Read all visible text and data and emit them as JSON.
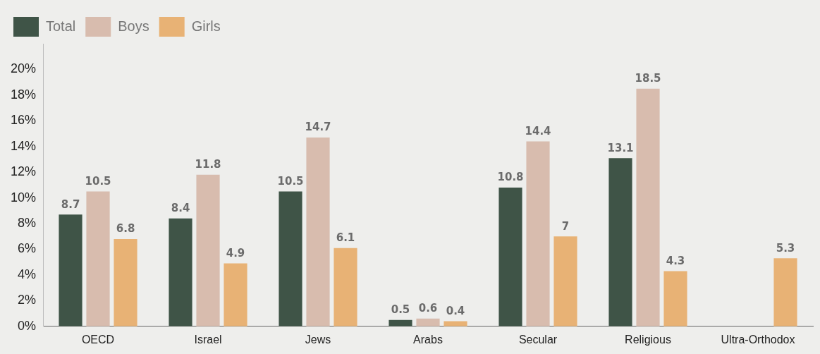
{
  "chart_data": {
    "type": "bar",
    "categories": [
      "OECD",
      "Israel",
      "Jews",
      "Arabs",
      "Secular",
      "Religious",
      "Ultra-Orthodox"
    ],
    "series": [
      {
        "name": "Total",
        "color": "#3f5447",
        "values": [
          8.7,
          8.4,
          10.5,
          0.5,
          10.8,
          13.1,
          null
        ]
      },
      {
        "name": "Boys",
        "color": "#d8bcae",
        "values": [
          10.5,
          11.8,
          14.7,
          0.6,
          14.4,
          18.5,
          null
        ]
      },
      {
        "name": "Girls",
        "color": "#e8b275",
        "values": [
          6.8,
          4.9,
          6.1,
          0.4,
          7,
          4.3,
          5.3
        ]
      }
    ],
    "ylim": [
      0,
      22
    ],
    "yticks": [
      {
        "value": 0,
        "label": "0%"
      },
      {
        "value": 2,
        "label": "2%"
      },
      {
        "value": 4,
        "label": "4%"
      },
      {
        "value": 6,
        "label": "6%"
      },
      {
        "value": 8,
        "label": "8%"
      },
      {
        "value": 10,
        "label": "10%"
      },
      {
        "value": 12,
        "label": "12%"
      },
      {
        "value": 14,
        "label": "14%"
      },
      {
        "value": 16,
        "label": "16%"
      },
      {
        "value": 18,
        "label": "18%"
      },
      {
        "value": 20,
        "label": "20%"
      }
    ],
    "grid": false,
    "legend": "top left",
    "data_labels": true
  }
}
